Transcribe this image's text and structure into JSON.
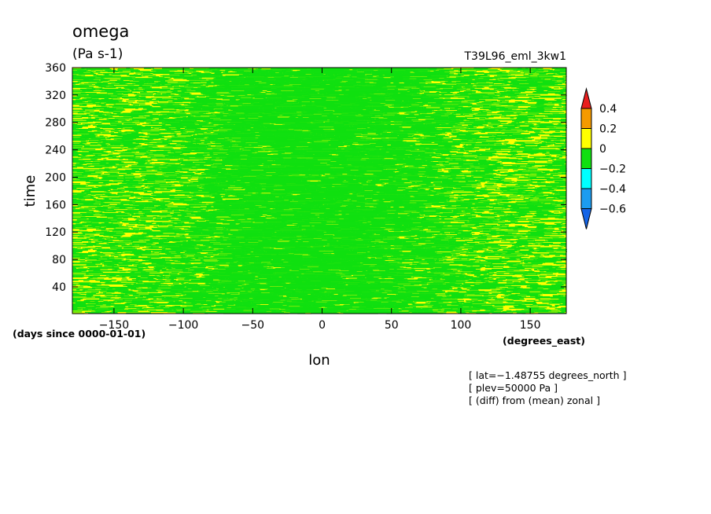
{
  "chart_data": {
    "type": "heatmap",
    "title": "omega",
    "subtitle": "(Pa s-1)",
    "run_label": "T39L96_eml_3kw1",
    "xlabel": "lon",
    "x_units": "(degrees_east)",
    "ylabel": "time",
    "y_units": "(days since 0000-01-01)",
    "xlim": [
      -180,
      176
    ],
    "ylim": [
      1,
      360
    ],
    "x_ticks": [
      -150,
      -100,
      -50,
      0,
      50,
      100,
      150
    ],
    "x_tick_labels": [
      "−150",
      "−100",
      "−50",
      "0",
      "50",
      "100",
      "150"
    ],
    "y_ticks": [
      40,
      80,
      120,
      160,
      200,
      240,
      280,
      320,
      360
    ],
    "y_tick_labels": [
      "40",
      "80",
      "120",
      "160",
      "200",
      "240",
      "280",
      "320",
      "360"
    ],
    "colorbar": {
      "levels": [
        "0.4",
        "0.2",
        "0",
        "−0.2",
        "−0.4",
        "−0.6"
      ],
      "colors": [
        "#e81e1e",
        "#f59a00",
        "#ffff00",
        "#10e010",
        "#00ffff",
        "#1c9cf0",
        "#1464e6"
      ]
    },
    "field_description_by_lon": [
      {
        "lon": -180,
        "mean_omega": 0.02
      },
      {
        "lon": -120,
        "mean_omega": 0.01
      },
      {
        "lon": -100,
        "mean_omega": -0.04
      },
      {
        "lon": -50,
        "mean_omega": -0.12
      },
      {
        "lon": 0,
        "mean_omega": -0.14
      },
      {
        "lon": 50,
        "mean_omega": -0.1
      },
      {
        "lon": 90,
        "mean_omega": -0.03
      },
      {
        "lon": 120,
        "mean_omega": 0.02
      },
      {
        "lon": 176,
        "mean_omega": 0.02
      }
    ],
    "annotations": [
      "[ lat=−1.48755 degrees_north ]",
      "[ plev=50000 Pa ]",
      "[ (diff) from (mean) zonal ]"
    ]
  }
}
